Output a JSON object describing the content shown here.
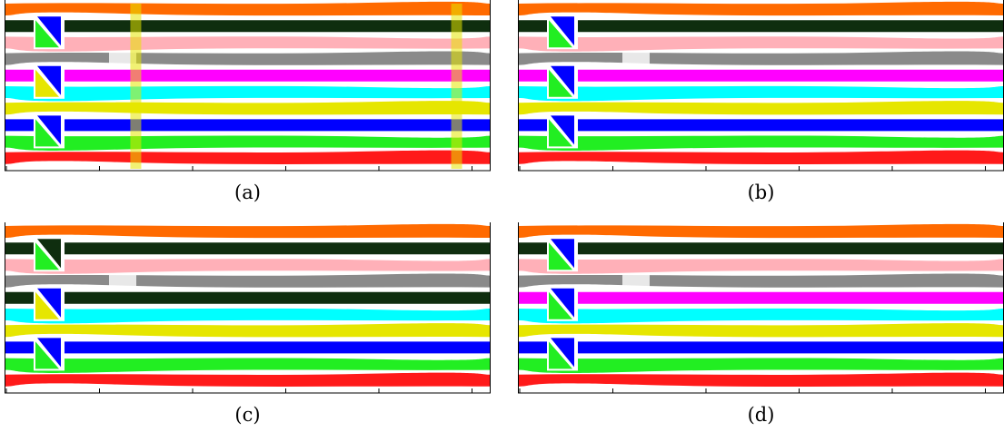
{
  "colors": {
    "orange": "#ff6a00",
    "dark_green": "#0f2e0f",
    "pink": "#ffb0b8",
    "gray": "#8a8a8a",
    "magenta": "#ff00ff",
    "cyan": "#00ffff",
    "yellow": "#e6e600",
    "blue": "#0000ff",
    "green": "#22ee22",
    "red": "#ff1a1a"
  },
  "panels": [
    {
      "caption": "(a)",
      "stripes": [
        "orange",
        "dark_green",
        "pink",
        "gray",
        "magenta",
        "cyan",
        "yellow",
        "blue",
        "green",
        "red"
      ],
      "blocks": [
        {
          "row": 1,
          "top": "blue",
          "bottom": "green"
        },
        {
          "row": 4,
          "top": "blue",
          "bottom": "yellow"
        },
        {
          "row": 7,
          "top": "blue",
          "bottom": "green"
        }
      ],
      "vertical_artifacts": [
        0.27,
        0.93
      ]
    },
    {
      "caption": "(b)",
      "stripes": [
        "orange",
        "dark_green",
        "pink",
        "gray",
        "magenta",
        "cyan",
        "yellow",
        "blue",
        "green",
        "red"
      ],
      "blocks": [
        {
          "row": 1,
          "top": "blue",
          "bottom": "green"
        },
        {
          "row": 4,
          "top": "blue",
          "bottom": "green"
        },
        {
          "row": 7,
          "top": "blue",
          "bottom": "green"
        }
      ],
      "vertical_artifacts": []
    },
    {
      "caption": "(c)",
      "stripes": [
        "orange",
        "dark_green",
        "pink",
        "gray",
        "dark_green",
        "cyan",
        "yellow",
        "blue",
        "green",
        "red"
      ],
      "blocks": [
        {
          "row": 1,
          "top": "dark_green",
          "bottom": "green"
        },
        {
          "row": 4,
          "top": "blue",
          "bottom": "yellow"
        },
        {
          "row": 7,
          "top": "blue",
          "bottom": "green"
        }
      ],
      "vertical_artifacts": []
    },
    {
      "caption": "(d)",
      "stripes": [
        "orange",
        "dark_green",
        "pink",
        "gray",
        "magenta",
        "cyan",
        "yellow",
        "blue",
        "green",
        "red"
      ],
      "blocks": [
        {
          "row": 1,
          "top": "blue",
          "bottom": "green"
        },
        {
          "row": 4,
          "top": "blue",
          "bottom": "green"
        },
        {
          "row": 7,
          "top": "blue",
          "bottom": "green"
        }
      ],
      "vertical_artifacts": []
    }
  ]
}
